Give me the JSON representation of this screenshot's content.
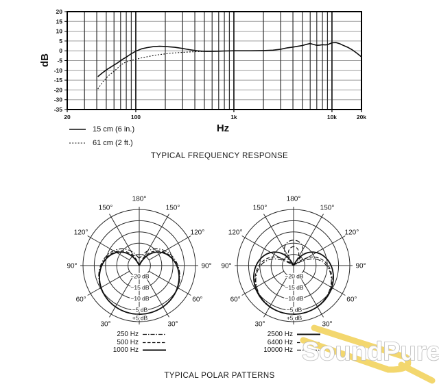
{
  "chart_data": [
    {
      "type": "line",
      "title": "TYPICAL FREQUENCY RESPONSE",
      "xlabel": "Hz",
      "ylabel": "dB",
      "x_scale": "log",
      "xlim": [
        20,
        20000
      ],
      "y_tick_labels": [
        "20",
        "15",
        "10",
        "5",
        "0",
        "-5",
        "-10",
        "-15",
        "-20",
        "-30",
        "-35"
      ],
      "x_ticks": [
        {
          "f": 20,
          "label": "20"
        },
        {
          "f": 100,
          "label": "100"
        },
        {
          "f": 1000,
          "label": "1k"
        },
        {
          "f": 10000,
          "label": "10k"
        },
        {
          "f": 20000,
          "label": "20k"
        }
      ],
      "grid_freqs": [
        30,
        40,
        50,
        60,
        70,
        80,
        90,
        100,
        200,
        300,
        400,
        500,
        600,
        700,
        800,
        900,
        1000,
        2000,
        3000,
        4000,
        5000,
        6000,
        7000,
        8000,
        9000,
        10000
      ],
      "major_freqs": [
        100,
        1000,
        10000
      ],
      "series": [
        {
          "name": "15 cm  (6 in.)",
          "line": "solid",
          "points": [
            [
              41,
              -13.2
            ],
            [
              45,
              -11.5
            ],
            [
              50,
              -9.8
            ],
            [
              57,
              -8
            ],
            [
              65,
              -6.2
            ],
            [
              73,
              -4.4
            ],
            [
              80,
              -3.2
            ],
            [
              90,
              -1.5
            ],
            [
              100,
              -0.2
            ],
            [
              115,
              1
            ],
            [
              130,
              1.6
            ],
            [
              150,
              2.1
            ],
            [
              175,
              2.3
            ],
            [
              200,
              2.2
            ],
            [
              250,
              1.8
            ],
            [
              300,
              1.2
            ],
            [
              350,
              0.6
            ],
            [
              420,
              0
            ],
            [
              500,
              -0.3
            ],
            [
              600,
              -0.3
            ],
            [
              700,
              -0.2
            ],
            [
              800,
              -0.1
            ],
            [
              1000,
              0
            ],
            [
              1500,
              0
            ],
            [
              2000,
              0.1
            ],
            [
              2500,
              0.3
            ],
            [
              3000,
              0.8
            ],
            [
              3500,
              1.5
            ],
            [
              4000,
              1.9
            ],
            [
              4500,
              2.3
            ],
            [
              5000,
              2.7
            ],
            [
              5500,
              3.3
            ],
            [
              6000,
              3.7
            ],
            [
              6500,
              3.2
            ],
            [
              7000,
              2.8
            ],
            [
              7500,
              2.9
            ],
            [
              8000,
              3.1
            ],
            [
              8500,
              3
            ],
            [
              9000,
              3.1
            ],
            [
              9500,
              3.6
            ],
            [
              10000,
              4.1
            ],
            [
              11000,
              4.2
            ],
            [
              12000,
              3.6
            ],
            [
              13000,
              2.8
            ],
            [
              14500,
              1.8
            ],
            [
              16000,
              0.6
            ],
            [
              18000,
              -1.3
            ],
            [
              20000,
              -3.1
            ]
          ]
        },
        {
          "name": "61 cm  (2 ft.)",
          "line": "dotted",
          "points": [
            [
              41,
              -19.5
            ],
            [
              46,
              -16
            ],
            [
              52,
              -13
            ],
            [
              60,
              -10.5
            ],
            [
              68,
              -8
            ],
            [
              75,
              -6.3
            ],
            [
              85,
              -5.2
            ],
            [
              100,
              -4.4
            ],
            [
              115,
              -3.6
            ],
            [
              135,
              -2.9
            ],
            [
              160,
              -2.2
            ],
            [
              190,
              -1.7
            ],
            [
              230,
              -1.2
            ],
            [
              280,
              -0.9
            ],
            [
              350,
              -0.6
            ],
            [
              450,
              -0.4
            ],
            [
              550,
              -0.3
            ],
            [
              650,
              -0.2
            ],
            [
              700,
              -0.2
            ]
          ]
        }
      ],
      "legend": [
        {
          "label": "15 cm  (6 in.)",
          "line": "solid"
        },
        {
          "label": "61 cm  (2 ft.)",
          "line": "dotted"
        }
      ]
    },
    {
      "type": "polar",
      "group_title": "TYPICAL POLAR PATTERNS",
      "angle_labels": [
        "180°",
        "150°",
        "120°",
        "90°",
        "60°",
        "30°"
      ],
      "ring_db_labels": [
        "−20 dB",
        "−15 dB",
        "−10 dB",
        "−5 dB"
      ],
      "outer_db_label": "+5 dB",
      "series": [
        {
          "name": "250 Hz",
          "line": "dashdot",
          "pattern": "wide cardioid",
          "a": 0.54,
          "b": 0.46
        },
        {
          "name": "500 Hz",
          "line": "dashed",
          "pattern": "cardioid",
          "a": 0.515,
          "b": 0.485
        },
        {
          "name": "1000 Hz",
          "line": "solid",
          "pattern": "cardioid",
          "a": 0.5,
          "b": 0.5
        }
      ],
      "legend": [
        {
          "label": "250 Hz",
          "line": "dashdot"
        },
        {
          "label": "500 Hz",
          "line": "dashed"
        },
        {
          "label": "1000 Hz",
          "line": "solid"
        }
      ]
    },
    {
      "type": "polar",
      "group_title": "TYPICAL POLAR PATTERNS",
      "angle_labels": [
        "180°",
        "150°",
        "120°",
        "90°",
        "60°",
        "30°"
      ],
      "ring_db_labels": [
        "−20 dB",
        "−15 dB",
        "−10 dB",
        "−5 dB"
      ],
      "outer_db_label": "+5 dB",
      "series": [
        {
          "name": "2500 Hz",
          "line": "solid",
          "pattern": "cardioid",
          "a": 0.5,
          "b": 0.5
        },
        {
          "name": "6400 Hz",
          "line": "dashed",
          "pattern": "supercardioid",
          "a": 0.42,
          "b": 0.58
        },
        {
          "name": "10000 Hz",
          "line": "dashdot",
          "pattern": "supercardioid",
          "a": 0.38,
          "b": 0.62
        }
      ],
      "legend": [
        {
          "label": "2500 Hz",
          "line": "solid"
        },
        {
          "label": "6400 Hz",
          "line": "dashed"
        },
        {
          "label": "10000 Hz",
          "line": "dashdot"
        }
      ]
    }
  ],
  "watermark": {
    "text": "SoundPure",
    "fork_color": "#f3d76e"
  }
}
